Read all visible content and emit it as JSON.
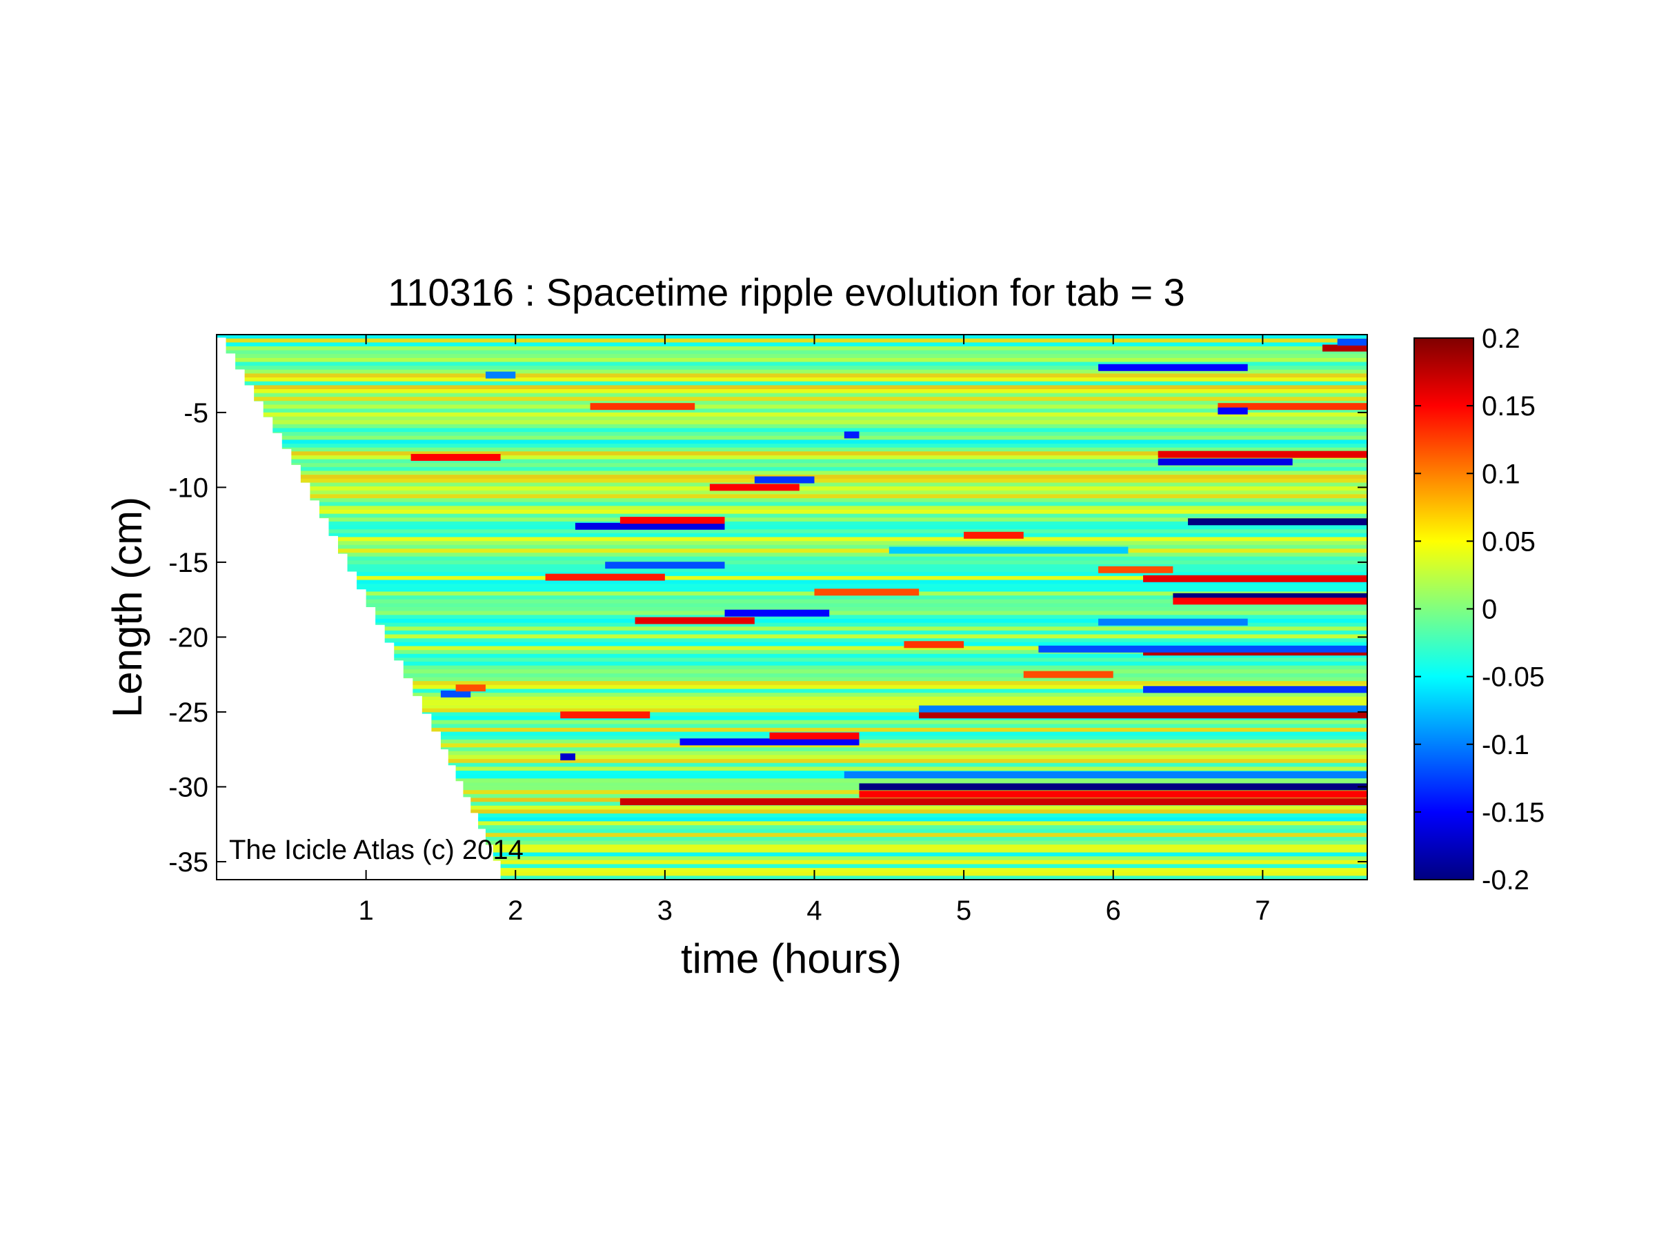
{
  "chart_data": {
    "type": "heatmap",
    "title": "110316 : Spacetime ripple evolution for tab = 3",
    "xlabel": "time (hours)",
    "ylabel": "Length (cm)",
    "xlim": [
      0,
      7.7
    ],
    "ylim": [
      -36.2,
      0.2
    ],
    "x_ticks": [
      1,
      2,
      3,
      4,
      5,
      6,
      7
    ],
    "x_tick_labels": [
      "1",
      "2",
      "3",
      "4",
      "5",
      "6",
      "7"
    ],
    "y_ticks": [
      -5,
      -10,
      -15,
      -20,
      -25,
      -30,
      -35
    ],
    "y_tick_labels": [
      "-5",
      "-10",
      "-15",
      "-20",
      "-25",
      "-30",
      "-35"
    ],
    "colorbar": {
      "colormap": "jet",
      "min": -0.2,
      "max": 0.2,
      "ticks": [
        0.2,
        0.15,
        0.1,
        0.05,
        0,
        -0.05,
        -0.1,
        -0.15,
        -0.2
      ],
      "tick_labels": [
        "0.2",
        "0.15",
        "0.1",
        "0.05",
        "0",
        "-0.05",
        "-0.1",
        "-0.15",
        "-0.2"
      ]
    },
    "data_boundary": {
      "description": "icicle tip grows downward with time; no data to the left of the boundary",
      "points": [
        [
          0,
          0
        ],
        [
          0.5,
          -8.5
        ],
        [
          1.0,
          -18
        ],
        [
          1.5,
          -27.5
        ],
        [
          1.9,
          -36
        ]
      ]
    },
    "background_value": -0.02,
    "features": [
      {
        "y": -30.0,
        "x0": 4.3,
        "x1": 7.7,
        "value": -0.2
      },
      {
        "y": -30.5,
        "x0": 4.3,
        "x1": 7.7,
        "value": 0.15
      },
      {
        "y": -31.0,
        "x0": 2.7,
        "x1": 7.7,
        "value": 0.17
      },
      {
        "y": -29.2,
        "x0": 4.2,
        "x1": 7.7,
        "value": -0.1
      },
      {
        "y": -25.2,
        "x0": 4.7,
        "x1": 7.7,
        "value": 0.18
      },
      {
        "y": -24.8,
        "x0": 4.7,
        "x1": 7.7,
        "value": -0.1
      },
      {
        "y": -23.5,
        "x0": 6.2,
        "x1": 7.7,
        "value": -0.13
      },
      {
        "y": -21.0,
        "x0": 6.2,
        "x1": 7.7,
        "value": 0.18
      },
      {
        "y": -20.8,
        "x0": 5.5,
        "x1": 7.7,
        "value": -0.12
      },
      {
        "y": -17.3,
        "x0": 6.4,
        "x1": 7.7,
        "value": -0.2
      },
      {
        "y": -17.6,
        "x0": 6.4,
        "x1": 7.7,
        "value": 0.15
      },
      {
        "y": -16.1,
        "x0": 6.2,
        "x1": 7.7,
        "value": 0.16
      },
      {
        "y": -12.3,
        "x0": 6.5,
        "x1": 7.7,
        "value": -0.2
      },
      {
        "y": -8.3,
        "x0": 6.3,
        "x1": 7.2,
        "value": -0.16
      },
      {
        "y": -7.8,
        "x0": 6.3,
        "x1": 7.7,
        "value": 0.16
      },
      {
        "y": -4.6,
        "x0": 6.7,
        "x1": 7.7,
        "value": 0.13
      },
      {
        "y": -4.9,
        "x0": 6.7,
        "x1": 6.9,
        "value": -0.15
      },
      {
        "y": -0.7,
        "x0": 7.4,
        "x1": 7.7,
        "value": 0.18
      },
      {
        "y": -0.3,
        "x0": 7.5,
        "x1": 7.7,
        "value": -0.12
      },
      {
        "y": -2.0,
        "x0": 5.9,
        "x1": 6.9,
        "value": -0.15
      },
      {
        "y": -27.0,
        "x0": 3.1,
        "x1": 4.3,
        "value": -0.15
      },
      {
        "y": -26.6,
        "x0": 3.7,
        "x1": 4.3,
        "value": 0.15
      },
      {
        "y": -18.9,
        "x0": 2.8,
        "x1": 3.6,
        "value": 0.16
      },
      {
        "y": -18.4,
        "x0": 3.4,
        "x1": 4.1,
        "value": -0.15
      },
      {
        "y": -12.6,
        "x0": 2.4,
        "x1": 3.4,
        "value": -0.16
      },
      {
        "y": -12.2,
        "x0": 2.7,
        "x1": 3.4,
        "value": 0.15
      },
      {
        "y": -10.0,
        "x0": 3.3,
        "x1": 3.9,
        "value": 0.15
      },
      {
        "y": -9.5,
        "x0": 3.6,
        "x1": 4.0,
        "value": -0.13
      },
      {
        "y": -16.0,
        "x0": 2.2,
        "x1": 3.0,
        "value": 0.14
      },
      {
        "y": -15.2,
        "x0": 2.6,
        "x1": 3.4,
        "value": -0.12
      },
      {
        "y": -25.2,
        "x0": 2.3,
        "x1": 2.9,
        "value": 0.14
      },
      {
        "y": -8.0,
        "x0": 1.3,
        "x1": 1.9,
        "value": 0.15
      },
      {
        "y": -13.2,
        "x0": 5.0,
        "x1": 5.4,
        "value": 0.14
      },
      {
        "y": -15.5,
        "x0": 5.9,
        "x1": 6.4,
        "value": 0.12
      },
      {
        "y": -20.5,
        "x0": 4.6,
        "x1": 5.0,
        "value": 0.13
      },
      {
        "y": -22.5,
        "x0": 5.4,
        "x1": 6.0,
        "value": 0.12
      },
      {
        "y": -17.0,
        "x0": 4.0,
        "x1": 4.7,
        "value": 0.12
      },
      {
        "y": -4.6,
        "x0": 2.5,
        "x1": 3.2,
        "value": 0.13
      },
      {
        "y": -19.0,
        "x0": 5.9,
        "x1": 6.9,
        "value": -0.1
      },
      {
        "y": -14.2,
        "x0": 4.5,
        "x1": 6.1,
        "value": -0.07
      },
      {
        "y": -28.0,
        "x0": 2.3,
        "x1": 2.4,
        "value": -0.17
      },
      {
        "y": -23.8,
        "x0": 1.5,
        "x1": 1.7,
        "value": -0.12
      },
      {
        "y": -23.4,
        "x0": 1.6,
        "x1": 1.8,
        "value": 0.12
      },
      {
        "y": -6.5,
        "x0": 4.2,
        "x1": 4.3,
        "value": -0.14
      },
      {
        "y": -2.5,
        "x0": 1.8,
        "x1": 2.0,
        "value": -0.1
      }
    ],
    "watermark": "The Icicle Atlas (c) 2014"
  }
}
